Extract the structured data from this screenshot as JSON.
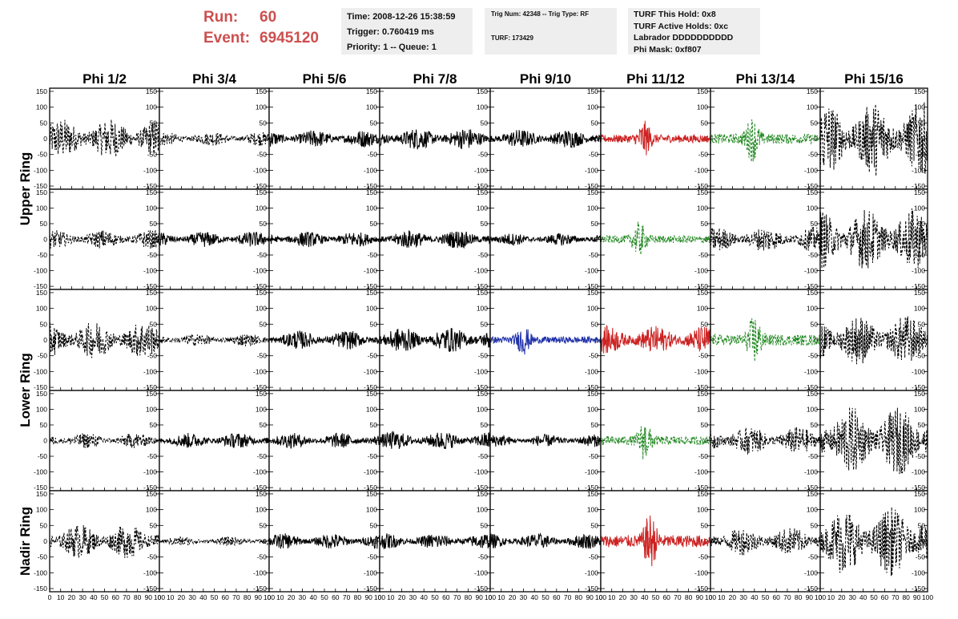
{
  "header": {
    "run_label": "Run:",
    "run_value": "60",
    "event_label": "Event:",
    "event_value": "6945120",
    "accent_color": "#cd4f4f"
  },
  "info_box_1": {
    "time": "Time: 2008-12-26 15:38:59",
    "trigger": "Trigger: 0.760419 ms",
    "priority": "Priority: 1 -- Queue: 1"
  },
  "info_box_2": {
    "trig": "Trig Num: 42348 -- Trig Type: RF",
    "turf": "TURF: 173429"
  },
  "info_box_3": {
    "hold": "TURF This Hold: 0x8",
    "active": "TURF Active Holds: 0xc",
    "labrador": "Labrador DDDDDDDDDD",
    "phimask": "Phi Mask: 0xf807"
  },
  "chart_data": {
    "type": "line",
    "columns": [
      "Phi 1/2",
      "Phi 3/4",
      "Phi 5/6",
      "Phi 7/8",
      "Phi 9/10",
      "Phi 11/12",
      "Phi 13/14",
      "Phi 15/16"
    ],
    "row_labels": [
      "Upper Ring",
      "Lower Ring",
      "Nadir Ring"
    ],
    "ylim": [
      -160,
      160
    ],
    "xlim": [
      0,
      100
    ],
    "yticks": [
      -150,
      -100,
      -50,
      0,
      50,
      100,
      150
    ],
    "xticks": [
      0,
      10,
      20,
      30,
      40,
      50,
      60,
      70,
      80,
      90,
      100
    ],
    "xtick_labels_text": [
      "0",
      "10",
      "20",
      "30",
      "40",
      "50",
      "60",
      "70",
      "80",
      "90",
      "100"
    ],
    "panels": [
      [
        {
          "amplitude": 65,
          "style": "dashed",
          "color": "#000000"
        },
        {
          "amplitude": 22,
          "style": "dashed",
          "color": "#000000"
        },
        {
          "amplitude": 28,
          "style": "solid",
          "color": "#000000"
        },
        {
          "amplitude": 35,
          "style": "solid",
          "color": "#000000"
        },
        {
          "amplitude": 30,
          "style": "solid",
          "color": "#000000"
        },
        {
          "amplitude": 35,
          "style": "solid",
          "color": "#cc2222",
          "burst_at": 40
        },
        {
          "amplitude": 45,
          "style": "dashed",
          "color": "#228822",
          "burst_at": 38
        },
        {
          "amplitude": 120,
          "style": "dashed",
          "color": "#000000"
        }
      ],
      [
        {
          "amplitude": 30,
          "style": "dashed",
          "color": "#000000"
        },
        {
          "amplitude": 25,
          "style": "solid",
          "color": "#000000"
        },
        {
          "amplitude": 25,
          "style": "solid",
          "color": "#000000"
        },
        {
          "amplitude": 30,
          "style": "solid",
          "color": "#000000"
        },
        {
          "amplitude": 20,
          "style": "solid",
          "color": "#000000"
        },
        {
          "amplitude": 35,
          "style": "dashed",
          "color": "#228822",
          "burst_at": 35
        },
        {
          "amplitude": 40,
          "style": "dashed",
          "color": "#000000"
        },
        {
          "amplitude": 100,
          "style": "dashed",
          "color": "#000000"
        }
      ],
      [
        {
          "amplitude": 60,
          "style": "dashed",
          "color": "#000000"
        },
        {
          "amplitude": 20,
          "style": "dashed",
          "color": "#000000"
        },
        {
          "amplitude": 30,
          "style": "solid",
          "color": "#000000"
        },
        {
          "amplitude": 40,
          "style": "solid",
          "color": "#000000"
        },
        {
          "amplitude": 30,
          "style": "solid",
          "color": "#2233aa",
          "burst_at": 30
        },
        {
          "amplitude": 45,
          "style": "solid",
          "color": "#cc2222"
        },
        {
          "amplitude": 50,
          "style": "dashed",
          "color": "#228822",
          "burst_at": 40
        },
        {
          "amplitude": 80,
          "style": "dashed",
          "color": "#000000"
        }
      ],
      [
        {
          "amplitude": 25,
          "style": "dashed",
          "color": "#000000"
        },
        {
          "amplitude": 25,
          "style": "solid",
          "color": "#000000"
        },
        {
          "amplitude": 25,
          "style": "solid",
          "color": "#000000"
        },
        {
          "amplitude": 30,
          "style": "solid",
          "color": "#000000"
        },
        {
          "amplitude": 20,
          "style": "solid",
          "color": "#000000"
        },
        {
          "amplitude": 40,
          "style": "dashed",
          "color": "#228822",
          "burst_at": 40
        },
        {
          "amplitude": 45,
          "style": "dashed",
          "color": "#000000"
        },
        {
          "amplitude": 110,
          "style": "dashed",
          "color": "#000000"
        }
      ],
      [
        {
          "amplitude": 55,
          "style": "dashed",
          "color": "#000000"
        },
        {
          "amplitude": 15,
          "style": "dashed",
          "color": "#000000"
        },
        {
          "amplitude": 25,
          "style": "solid",
          "color": "#000000"
        },
        {
          "amplitude": 25,
          "style": "solid",
          "color": "#000000"
        },
        {
          "amplitude": 25,
          "style": "solid",
          "color": "#000000"
        },
        {
          "amplitude": 55,
          "style": "solid",
          "color": "#cc2222",
          "burst_at": 45
        },
        {
          "amplitude": 45,
          "style": "dashed",
          "color": "#000000"
        },
        {
          "amplitude": 110,
          "style": "dashed",
          "color": "#000000"
        }
      ]
    ]
  }
}
